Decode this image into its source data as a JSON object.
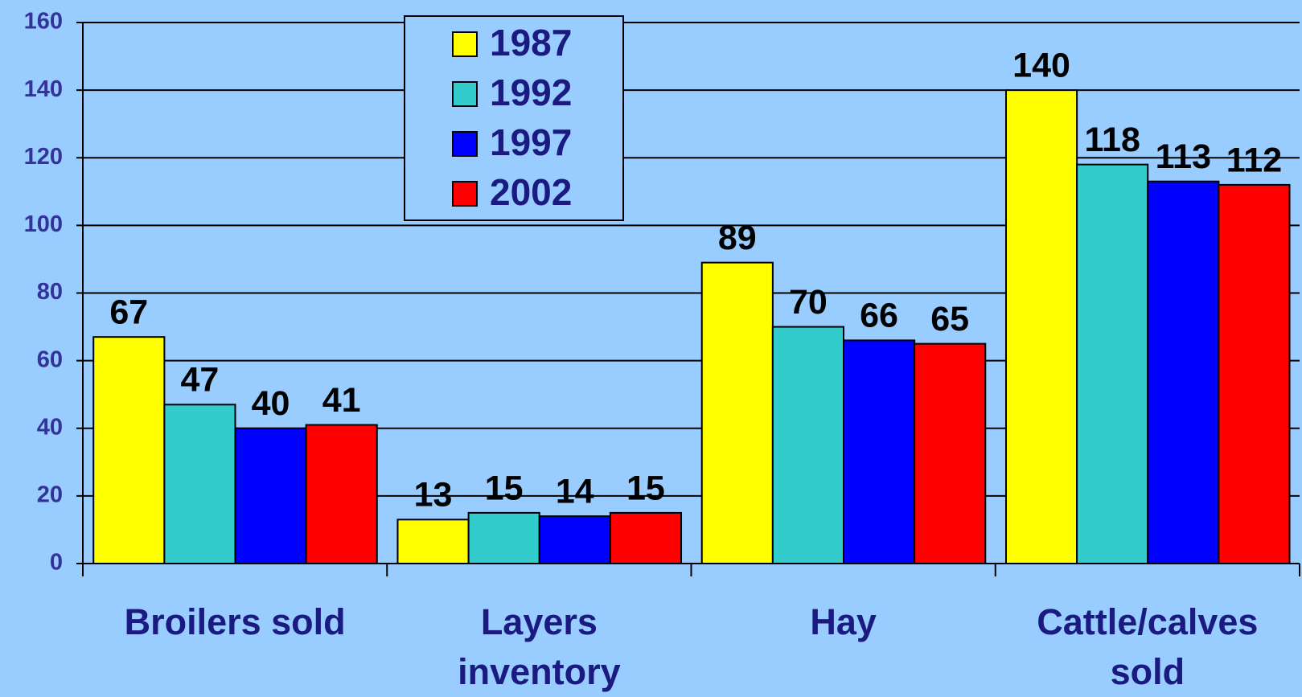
{
  "chart_data": {
    "type": "bar",
    "categories": [
      "Broilers sold",
      "Layers inventory",
      "Hay",
      "Cattle/calves sold"
    ],
    "series": [
      {
        "name": "1987",
        "color": "#ffff00",
        "values": [
          67,
          13,
          89,
          140
        ]
      },
      {
        "name": "1992",
        "color": "#33cccc",
        "values": [
          47,
          15,
          70,
          118
        ]
      },
      {
        "name": "1997",
        "color": "#0000ff",
        "values": [
          40,
          14,
          66,
          113
        ]
      },
      {
        "name": "2002",
        "color": "#ff0000",
        "values": [
          41,
          15,
          65,
          112
        ]
      }
    ],
    "ylim": [
      0,
      160
    ],
    "yticks": [
      0,
      20,
      40,
      60,
      80,
      100,
      120,
      140,
      160
    ],
    "grid": true,
    "legend": "top"
  }
}
